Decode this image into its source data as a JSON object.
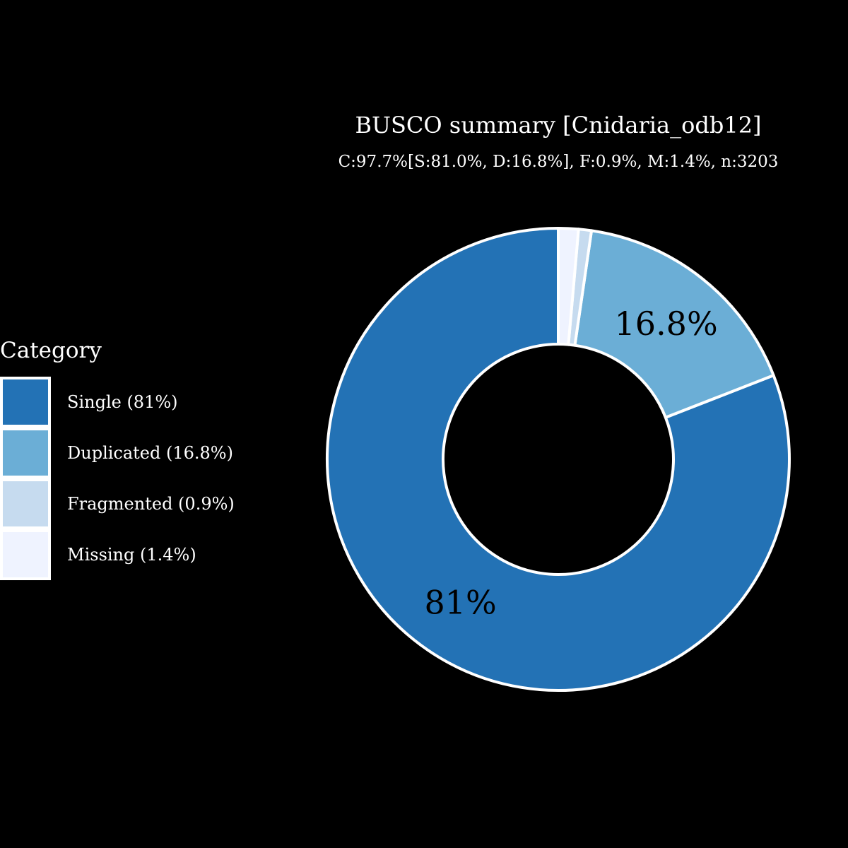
{
  "chart_data": {
    "type": "pie",
    "donut": true,
    "title": "BUSCO summary [Cnidaria_odb12]",
    "subtitle": "C:97.7%[S:81.0%, D:16.8%], F:0.9%, M:1.4%, n:3203",
    "legend": {
      "title": "Category",
      "placement": "left"
    },
    "slices": [
      {
        "name": "Single (81%)",
        "value": 81.0,
        "label": "81%",
        "color": "#2372b5"
      },
      {
        "name": "Duplicated (16.8%)",
        "value": 16.8,
        "label": "16.8%",
        "color": "#6baed6"
      },
      {
        "name": "Fragmented (0.9%)",
        "value": 0.9,
        "label": "",
        "color": "#c6dbef"
      },
      {
        "name": "Missing (1.4%)",
        "value": 1.4,
        "label": "",
        "color": "#eff3ff"
      }
    ],
    "background": "#000000",
    "edge_color": "#ffffff"
  }
}
